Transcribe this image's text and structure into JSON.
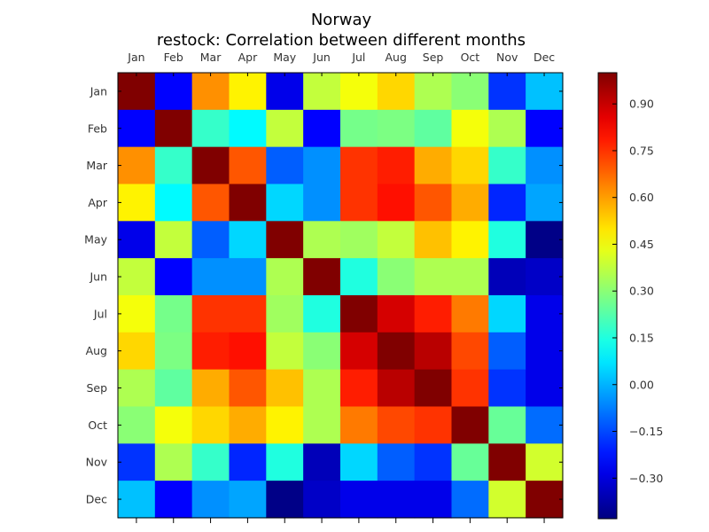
{
  "chart_data": {
    "type": "heatmap",
    "title": "Norway",
    "subtitle": "restock: Correlation between different months",
    "x_categories": [
      "Jan",
      "Feb",
      "Mar",
      "Apr",
      "May",
      "Jun",
      "Jul",
      "Aug",
      "Sep",
      "Oct",
      "Nov",
      "Dec"
    ],
    "y_categories": [
      "Jan",
      "Feb",
      "Mar",
      "Apr",
      "May",
      "Jun",
      "Jul",
      "Aug",
      "Sep",
      "Oct",
      "Nov",
      "Dec"
    ],
    "colormap": "jet",
    "vmin": -0.43,
    "vmax": 1.0,
    "colorbar_ticks": [
      0.9,
      0.75,
      0.6,
      0.45,
      0.3,
      0.15,
      0.0,
      -0.15,
      -0.3
    ],
    "colorbar_tick_labels": [
      "0.90",
      "0.75",
      "0.60",
      "0.45",
      "0.30",
      "0.15",
      "0.00",
      "−0.15",
      "−0.30"
    ],
    "values": [
      [
        1.0,
        -0.25,
        0.62,
        0.48,
        -0.28,
        0.38,
        0.45,
        0.52,
        0.35,
        0.3,
        -0.18,
        0.02
      ],
      [
        -0.25,
        1.0,
        0.18,
        0.1,
        0.38,
        -0.25,
        0.27,
        0.28,
        0.24,
        0.45,
        0.35,
        -0.25
      ],
      [
        0.62,
        0.18,
        1.0,
        0.7,
        -0.12,
        -0.05,
        0.75,
        0.78,
        0.58,
        0.52,
        0.18,
        -0.05
      ],
      [
        0.48,
        0.1,
        0.7,
        1.0,
        0.05,
        -0.05,
        0.75,
        0.8,
        0.7,
        0.58,
        -0.2,
        -0.02
      ],
      [
        -0.28,
        0.38,
        -0.12,
        0.05,
        1.0,
        0.35,
        0.33,
        0.38,
        0.55,
        0.48,
        0.15,
        -0.42
      ],
      [
        0.38,
        -0.25,
        -0.05,
        -0.05,
        0.35,
        1.0,
        0.15,
        0.3,
        0.35,
        0.35,
        -0.35,
        -0.33
      ],
      [
        0.45,
        0.27,
        0.75,
        0.75,
        0.33,
        0.15,
        1.0,
        0.88,
        0.78,
        0.65,
        0.05,
        -0.28
      ],
      [
        0.52,
        0.28,
        0.78,
        0.8,
        0.38,
        0.3,
        0.88,
        1.0,
        0.92,
        0.72,
        -0.12,
        -0.28
      ],
      [
        0.35,
        0.24,
        0.58,
        0.7,
        0.55,
        0.35,
        0.78,
        0.92,
        1.0,
        0.75,
        -0.18,
        -0.28
      ],
      [
        0.3,
        0.45,
        0.52,
        0.58,
        0.48,
        0.35,
        0.65,
        0.72,
        0.75,
        1.0,
        0.25,
        -0.1
      ],
      [
        -0.18,
        0.35,
        0.18,
        -0.2,
        0.15,
        -0.35,
        0.05,
        -0.12,
        -0.18,
        0.25,
        1.0,
        0.4
      ],
      [
        0.02,
        -0.25,
        -0.05,
        -0.02,
        -0.42,
        -0.33,
        -0.28,
        -0.28,
        -0.28,
        -0.1,
        0.4,
        1.0
      ]
    ]
  }
}
